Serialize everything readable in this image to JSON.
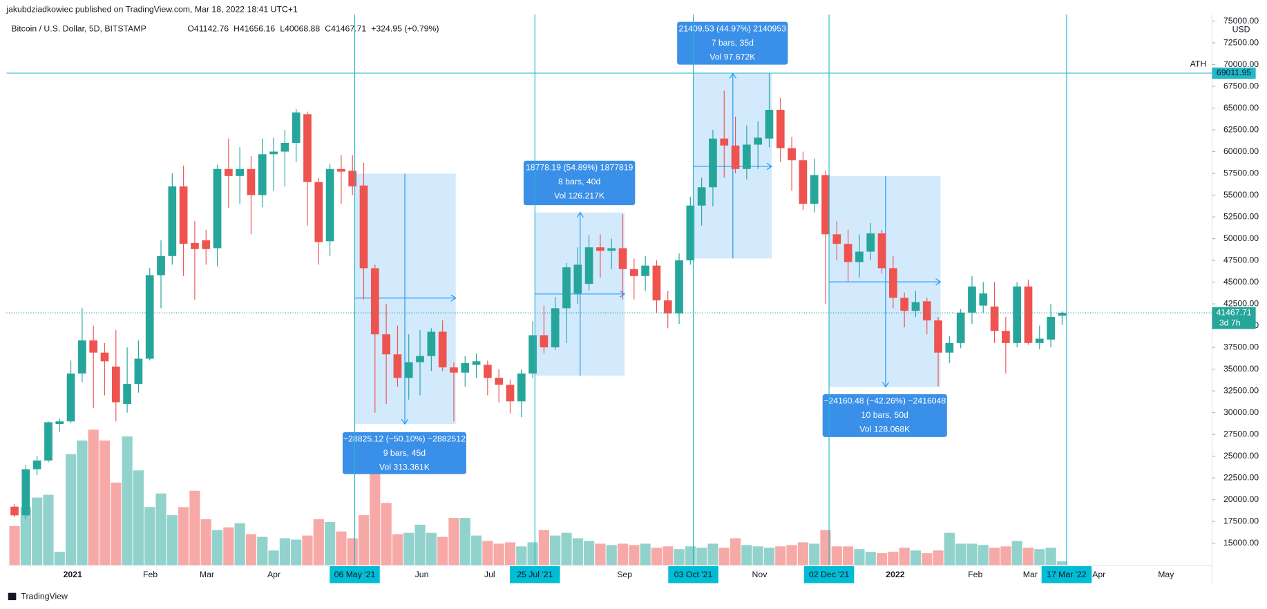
{
  "header": {
    "publisher": "jakubdziadkowiec published on TradingView.com, Mar 18, 2022 18:41 UTC+1",
    "symbol": "Bitcoin / U.S. Dollar, 5D, BITSTAMP",
    "ohlc": [
      "O41142.76",
      "H41656.16",
      "L40068.88",
      "C41467.71",
      "+324.95 (+0.79%)"
    ]
  },
  "footer": {
    "brand": "TradingView"
  },
  "chart_data": {
    "type": "candlestick",
    "currency": "USD",
    "up_color": "#26a69a",
    "down_color": "#ef5350",
    "open": [
      19200,
      18200,
      23500,
      24500,
      28700,
      29000,
      34500,
      38300,
      36900,
      35300,
      31000,
      33300,
      36200,
      45800,
      48000,
      56000,
      49500,
      49800,
      48900,
      58000,
      57200,
      58000,
      55000,
      59700,
      60000,
      61000,
      64300,
      56500,
      49700,
      58000,
      57800,
      56100,
      46600,
      39000,
      36700,
      34000,
      35800,
      36500,
      39300,
      35200,
      34600,
      35500,
      35500,
      34000,
      33200,
      31300,
      34500,
      38900,
      37500,
      42000,
      43700,
      44800,
      49000,
      48600,
      48900,
      46500,
      45700,
      46900,
      42900,
      41400,
      47500,
      53800,
      55900,
      61500,
      60700,
      58000,
      60800,
      61500,
      64800,
      60400,
      59000,
      54000,
      57300,
      50500,
      49400,
      47300,
      48500,
      50600,
      46600,
      43200,
      41700,
      42800,
      40600,
      36900,
      38000,
      41500,
      42300,
      42200,
      39400,
      38000,
      44500,
      38000,
      38400,
      41142.76
    ],
    "high": [
      19500,
      24000,
      25000,
      29000,
      29300,
      36000,
      42000,
      40000,
      38000,
      39500,
      37500,
      38300,
      46600,
      49800,
      57500,
      58400,
      52000,
      51000,
      58500,
      61500,
      60500,
      59500,
      61500,
      61600,
      62500,
      64900,
      64600,
      57000,
      58600,
      59600,
      59600,
      58700,
      47000,
      42500,
      40000,
      39000,
      39500,
      39700,
      40600,
      35800,
      36500,
      36800,
      36000,
      35000,
      33800,
      35000,
      40500,
      42300,
      43300,
      47200,
      49000,
      50400,
      50500,
      50000,
      52800,
      47700,
      48000,
      47500,
      44000,
      48300,
      54800,
      57000,
      62500,
      67000,
      64000,
      63000,
      63500,
      69000,
      66200,
      61700,
      60000,
      59200,
      57800,
      52000,
      51000,
      50500,
      51800,
      51000,
      48000,
      43800,
      44000,
      43200,
      41000,
      38800,
      41900,
      45700,
      45000,
      45000,
      41000,
      45000,
      45300,
      40000,
      42500,
      41656.16
    ],
    "low": [
      18000,
      17800,
      22800,
      24300,
      27800,
      28800,
      33500,
      30500,
      32000,
      29000,
      30000,
      32300,
      36000,
      42000,
      47000,
      45700,
      43000,
      47000,
      46800,
      53500,
      54000,
      50500,
      53600,
      55500,
      56000,
      58800,
      51500,
      47000,
      48000,
      54000,
      55000,
      43000,
      30000,
      31000,
      33000,
      31500,
      32000,
      34800,
      34800,
      29000,
      33000,
      34000,
      32000,
      31200,
      29900,
      29500,
      34000,
      36800,
      37200,
      38000,
      42500,
      44000,
      45500,
      46500,
      43000,
      43000,
      44000,
      41500,
      39700,
      40200,
      47000,
      51500,
      53700,
      57000,
      57500,
      56800,
      58000,
      60500,
      58800,
      55500,
      53300,
      53000,
      42500,
      47500,
      45000,
      45500,
      47500,
      46000,
      42000,
      39800,
      41000,
      39000,
      33000,
      35700,
      37400,
      40200,
      41500,
      38000,
      34500,
      37500,
      37800,
      37300,
      37500,
      40068.88
    ],
    "close": [
      18200,
      23500,
      24500,
      28900,
      29000,
      34500,
      38300,
      36900,
      35900,
      31200,
      33300,
      36200,
      45800,
      48000,
      56000,
      49400,
      48800,
      48800,
      58000,
      57200,
      58000,
      55000,
      59700,
      60000,
      61000,
      64500,
      56500,
      49600,
      58000,
      57700,
      56000,
      46600,
      39000,
      36700,
      34000,
      35800,
      36500,
      39300,
      35200,
      34600,
      35700,
      35900,
      34000,
      33200,
      31300,
      34500,
      38900,
      37500,
      42000,
      46700,
      47000,
      49000,
      48600,
      48900,
      46500,
      45700,
      46900,
      42900,
      41400,
      47500,
      53800,
      55900,
      61500,
      60700,
      58000,
      60800,
      61600,
      64800,
      60400,
      59000,
      54000,
      57300,
      50500,
      49400,
      47300,
      48500,
      50600,
      46600,
      43200,
      41700,
      42700,
      40600,
      36900,
      38000,
      41500,
      44500,
      43700,
      39400,
      38000,
      44500,
      38000,
      38500,
      41000,
      41467.71
    ],
    "volume": [
      29,
      43,
      50,
      52,
      10,
      82,
      92,
      100,
      92,
      61,
      95,
      70,
      43,
      53,
      37,
      43,
      55,
      34,
      26,
      28,
      31,
      23,
      21,
      11,
      20,
      19,
      22,
      34,
      32,
      25,
      20,
      37,
      74,
      46,
      23,
      24,
      30,
      24,
      21,
      35,
      35,
      22,
      18,
      16,
      17,
      14,
      17,
      26,
      22,
      24,
      20,
      18,
      16,
      15,
      16,
      15,
      16,
      13,
      14,
      12,
      14,
      13,
      16,
      13,
      20,
      15,
      14,
      13,
      14,
      15,
      17,
      16,
      26,
      14,
      14,
      12,
      10,
      9,
      10,
      13,
      11,
      9,
      11,
      24,
      16,
      16,
      15,
      13,
      14,
      18,
      13,
      12,
      13,
      3
    ],
    "ylim": [
      12450,
      75750
    ],
    "yticks": [
      {
        "value": 15000,
        "label": "15000.00"
      },
      {
        "value": 17500,
        "label": "17500.00"
      },
      {
        "value": 20000,
        "label": "20000.00"
      },
      {
        "value": 22500,
        "label": "22500.00"
      },
      {
        "value": 25000,
        "label": "25000.00"
      },
      {
        "value": 27500,
        "label": "27500.00"
      },
      {
        "value": 30000,
        "label": "30000.00"
      },
      {
        "value": 32500,
        "label": "32500.00"
      },
      {
        "value": 35000,
        "label": "35000.00"
      },
      {
        "value": 37500,
        "label": "37500.00"
      },
      {
        "value": 40000,
        "label": "40000.00"
      },
      {
        "value": 42500,
        "label": "42500.00"
      },
      {
        "value": 45000,
        "label": "45000.00"
      },
      {
        "value": 47500,
        "label": "47500.00"
      },
      {
        "value": 50000,
        "label": "50000.00"
      },
      {
        "value": 52500,
        "label": "52500.00"
      },
      {
        "value": 55000,
        "label": "55000.00"
      },
      {
        "value": 57500,
        "label": "57500.00"
      },
      {
        "value": 60000,
        "label": "60000.00"
      },
      {
        "value": 62500,
        "label": "62500.00"
      },
      {
        "value": 65000,
        "label": "65000.00"
      },
      {
        "value": 67500,
        "label": "67500.00"
      },
      {
        "value": 70000,
        "label": "70000.00"
      },
      {
        "value": 72500,
        "label": "72500.00"
      },
      {
        "value": 75000,
        "label": "75000.00"
      }
    ],
    "x_labels": [
      "2021",
      "Feb",
      "Mar",
      "Apr",
      "Jun",
      "Jul",
      "g",
      "Sep",
      "Nov",
      "2022",
      "Feb",
      "Mar",
      "Apr",
      "May"
    ],
    "date_markers": [
      "06 May '21",
      "25 Jul '21",
      "03 Oct '21",
      "02 Dec '21",
      "17 Mar '22"
    ],
    "ath": {
      "label": "ATH",
      "value": 69011.95
    },
    "countdown": "3d 7h",
    "measures": [
      {
        "lines": [
          "−28825.12 (−50.10%) −2882512",
          "9 bars, 45d",
          "Vol 313.361K"
        ]
      },
      {
        "lines": [
          "18778.19 (54.89%) 1877819",
          "8 bars, 40d",
          "Vol 126.217K"
        ]
      },
      {
        "lines": [
          "21409.53 (44.97%) 2140953",
          "7 bars, 35d",
          "Vol 97.672K"
        ]
      },
      {
        "lines": [
          "−24160.48 (−42.26%) −2416048",
          "10 bars, 50d",
          "Vol 128.068K"
        ]
      }
    ]
  }
}
